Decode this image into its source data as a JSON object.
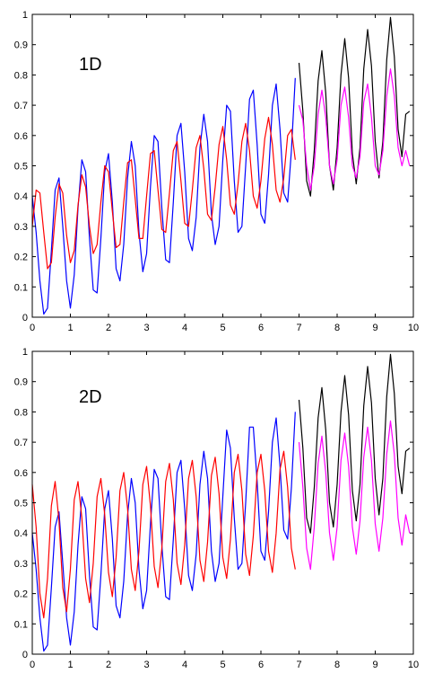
{
  "chart_data": [
    {
      "type": "line",
      "title": "",
      "annotation": "1D",
      "xlabel": "",
      "ylabel": "",
      "xlim": [
        0,
        10
      ],
      "ylim": [
        0,
        1
      ],
      "xticks": [
        "0",
        "1",
        "2",
        "3",
        "4",
        "5",
        "6",
        "7",
        "8",
        "9",
        "10"
      ],
      "yticks": [
        "0",
        "0.1",
        "0.2",
        "0.3",
        "0.4",
        "0.5",
        "0.6",
        "0.7",
        "0.8",
        "0.9",
        "1"
      ],
      "grid": false,
      "series": [
        {
          "color": "#0000ff",
          "x": [
            0,
            0.1,
            0.2,
            0.3,
            0.4,
            0.5,
            0.6,
            0.7,
            0.8,
            0.9,
            1,
            1.1,
            1.2,
            1.3,
            1.4,
            1.5,
            1.6,
            1.7,
            1.8,
            1.9,
            2,
            2.1,
            2.2,
            2.3,
            2.4,
            2.5,
            2.6,
            2.7,
            2.8,
            2.9,
            3,
            3.1,
            3.2,
            3.3,
            3.4,
            3.5,
            3.6,
            3.7,
            3.8,
            3.9,
            4,
            4.1,
            4.2,
            4.3,
            4.4,
            4.5,
            4.6,
            4.7,
            4.8,
            4.9,
            5,
            5.1,
            5.2,
            5.3,
            5.4,
            5.5,
            5.6,
            5.7,
            5.8,
            5.9,
            6,
            6.1,
            6.2,
            6.3,
            6.4,
            6.5,
            6.6,
            6.7,
            6.8,
            6.9
          ],
          "y": [
            0.4,
            0.28,
            0.12,
            0.01,
            0.03,
            0.22,
            0.42,
            0.46,
            0.3,
            0.12,
            0.03,
            0.14,
            0.36,
            0.52,
            0.48,
            0.26,
            0.09,
            0.08,
            0.26,
            0.48,
            0.54,
            0.38,
            0.16,
            0.12,
            0.24,
            0.46,
            0.58,
            0.5,
            0.28,
            0.15,
            0.21,
            0.43,
            0.6,
            0.58,
            0.36,
            0.19,
            0.18,
            0.38,
            0.6,
            0.64,
            0.48,
            0.26,
            0.22,
            0.33,
            0.56,
            0.67,
            0.58,
            0.34,
            0.24,
            0.3,
            0.52,
            0.7,
            0.68,
            0.45,
            0.28,
            0.3,
            0.5,
            0.72,
            0.75,
            0.57,
            0.34,
            0.31,
            0.47,
            0.7,
            0.77,
            0.62,
            0.41,
            0.38,
            0.55,
            0.79
          ]
        },
        {
          "color": "#ff0000",
          "x": [
            0,
            0.1,
            0.2,
            0.3,
            0.4,
            0.5,
            0.6,
            0.7,
            0.8,
            0.9,
            1,
            1.1,
            1.2,
            1.3,
            1.4,
            1.5,
            1.6,
            1.7,
            1.8,
            1.9,
            2,
            2.1,
            2.2,
            2.3,
            2.4,
            2.5,
            2.6,
            2.7,
            2.8,
            2.9,
            3,
            3.1,
            3.2,
            3.3,
            3.4,
            3.5,
            3.6,
            3.7,
            3.8,
            3.9,
            4,
            4.1,
            4.2,
            4.3,
            4.4,
            4.5,
            4.6,
            4.7,
            4.8,
            4.9,
            5,
            5.1,
            5.2,
            5.3,
            5.4,
            5.5,
            5.6,
            5.7,
            5.8,
            5.9,
            6,
            6.1,
            6.2,
            6.3,
            6.4,
            6.5,
            6.6,
            6.7,
            6.8,
            6.9
          ],
          "y": [
            0.3,
            0.42,
            0.41,
            0.28,
            0.16,
            0.18,
            0.33,
            0.44,
            0.41,
            0.27,
            0.18,
            0.22,
            0.37,
            0.47,
            0.43,
            0.3,
            0.21,
            0.24,
            0.38,
            0.5,
            0.48,
            0.35,
            0.23,
            0.24,
            0.38,
            0.51,
            0.52,
            0.39,
            0.26,
            0.26,
            0.4,
            0.54,
            0.55,
            0.42,
            0.29,
            0.28,
            0.41,
            0.55,
            0.58,
            0.45,
            0.31,
            0.3,
            0.42,
            0.56,
            0.6,
            0.49,
            0.34,
            0.32,
            0.43,
            0.57,
            0.63,
            0.52,
            0.37,
            0.34,
            0.44,
            0.58,
            0.64,
            0.55,
            0.4,
            0.36,
            0.45,
            0.59,
            0.66,
            0.57,
            0.42,
            0.38,
            0.46,
            0.6,
            0.62,
            0.52
          ]
        },
        {
          "color": "#000000",
          "x": [
            7,
            7.1,
            7.2,
            7.3,
            7.4,
            7.5,
            7.6,
            7.7,
            7.8,
            7.9,
            8,
            8.1,
            8.2,
            8.3,
            8.4,
            8.5,
            8.6,
            8.7,
            8.8,
            8.9,
            9,
            9.1,
            9.2,
            9.3,
            9.4,
            9.5,
            9.6,
            9.7,
            9.8,
            9.9
          ],
          "y": [
            0.84,
            0.68,
            0.45,
            0.4,
            0.55,
            0.78,
            0.88,
            0.74,
            0.5,
            0.42,
            0.56,
            0.8,
            0.92,
            0.79,
            0.54,
            0.44,
            0.56,
            0.82,
            0.95,
            0.83,
            0.58,
            0.46,
            0.58,
            0.85,
            0.99,
            0.86,
            0.62,
            0.53,
            0.67,
            0.68
          ]
        },
        {
          "color": "#ff00ff",
          "x": [
            7,
            7.1,
            7.2,
            7.3,
            7.4,
            7.5,
            7.6,
            7.7,
            7.8,
            7.9,
            8,
            8.1,
            8.2,
            8.3,
            8.4,
            8.5,
            8.6,
            8.7,
            8.8,
            8.9,
            9,
            9.1,
            9.2,
            9.3,
            9.4,
            9.5,
            9.6,
            9.7,
            9.8,
            9.9
          ],
          "y": [
            0.7,
            0.65,
            0.5,
            0.42,
            0.5,
            0.67,
            0.75,
            0.66,
            0.5,
            0.44,
            0.52,
            0.7,
            0.76,
            0.66,
            0.5,
            0.46,
            0.53,
            0.71,
            0.77,
            0.66,
            0.5,
            0.47,
            0.55,
            0.73,
            0.82,
            0.73,
            0.56,
            0.5,
            0.55,
            0.5
          ]
        }
      ]
    },
    {
      "type": "line",
      "title": "",
      "annotation": "2D",
      "xlabel": "",
      "ylabel": "",
      "xlim": [
        0,
        10
      ],
      "ylim": [
        0,
        1
      ],
      "xticks": [
        "0",
        "1",
        "2",
        "3",
        "4",
        "5",
        "6",
        "7",
        "8",
        "9",
        "10"
      ],
      "yticks": [
        "0",
        "0.1",
        "0.2",
        "0.3",
        "0.4",
        "0.5",
        "0.6",
        "0.7",
        "0.8",
        "0.9",
        "1"
      ],
      "grid": false,
      "series": [
        {
          "color": "#0000ff",
          "x": [
            0,
            0.1,
            0.2,
            0.3,
            0.4,
            0.5,
            0.6,
            0.7,
            0.8,
            0.9,
            1,
            1.1,
            1.2,
            1.3,
            1.4,
            1.5,
            1.6,
            1.7,
            1.8,
            1.9,
            2,
            2.1,
            2.2,
            2.3,
            2.4,
            2.5,
            2.6,
            2.7,
            2.8,
            2.9,
            3,
            3.1,
            3.2,
            3.3,
            3.4,
            3.5,
            3.6,
            3.7,
            3.8,
            3.9,
            4,
            4.1,
            4.2,
            4.3,
            4.4,
            4.5,
            4.6,
            4.7,
            4.8,
            4.9,
            5,
            5.1,
            5.2,
            5.3,
            5.4,
            5.5,
            5.6,
            5.7,
            5.8,
            5.9,
            6,
            6.1,
            6.2,
            6.3,
            6.4,
            6.5,
            6.6,
            6.7,
            6.8,
            6.9
          ],
          "y": [
            0.4,
            0.28,
            0.12,
            0.01,
            0.03,
            0.22,
            0.42,
            0.47,
            0.3,
            0.12,
            0.03,
            0.14,
            0.36,
            0.52,
            0.48,
            0.26,
            0.09,
            0.08,
            0.26,
            0.48,
            0.54,
            0.38,
            0.16,
            0.12,
            0.24,
            0.46,
            0.58,
            0.5,
            0.28,
            0.15,
            0.21,
            0.43,
            0.61,
            0.58,
            0.36,
            0.19,
            0.18,
            0.38,
            0.6,
            0.64,
            0.48,
            0.26,
            0.21,
            0.33,
            0.56,
            0.67,
            0.58,
            0.34,
            0.24,
            0.3,
            0.52,
            0.74,
            0.68,
            0.45,
            0.28,
            0.3,
            0.5,
            0.75,
            0.75,
            0.57,
            0.34,
            0.31,
            0.47,
            0.7,
            0.78,
            0.62,
            0.41,
            0.38,
            0.55,
            0.8
          ]
        },
        {
          "color": "#ff0000",
          "x": [
            0,
            0.1,
            0.2,
            0.3,
            0.4,
            0.5,
            0.6,
            0.7,
            0.8,
            0.9,
            1,
            1.1,
            1.2,
            1.3,
            1.4,
            1.5,
            1.6,
            1.7,
            1.8,
            1.9,
            2,
            2.1,
            2.2,
            2.3,
            2.4,
            2.5,
            2.6,
            2.7,
            2.8,
            2.9,
            3,
            3.1,
            3.2,
            3.3,
            3.4,
            3.5,
            3.6,
            3.7,
            3.8,
            3.9,
            4,
            4.1,
            4.2,
            4.3,
            4.4,
            4.5,
            4.6,
            4.7,
            4.8,
            4.9,
            5,
            5.1,
            5.2,
            5.3,
            5.4,
            5.5,
            5.6,
            5.7,
            5.8,
            5.9,
            6,
            6.1,
            6.2,
            6.3,
            6.4,
            6.5,
            6.6,
            6.7,
            6.8,
            6.9
          ],
          "y": [
            0.56,
            0.42,
            0.2,
            0.12,
            0.25,
            0.49,
            0.57,
            0.44,
            0.22,
            0.14,
            0.28,
            0.51,
            0.57,
            0.45,
            0.25,
            0.17,
            0.3,
            0.52,
            0.58,
            0.46,
            0.27,
            0.19,
            0.32,
            0.54,
            0.6,
            0.48,
            0.28,
            0.21,
            0.34,
            0.56,
            0.62,
            0.49,
            0.29,
            0.22,
            0.35,
            0.57,
            0.63,
            0.51,
            0.3,
            0.23,
            0.36,
            0.58,
            0.64,
            0.52,
            0.31,
            0.24,
            0.37,
            0.59,
            0.65,
            0.53,
            0.32,
            0.25,
            0.38,
            0.6,
            0.66,
            0.54,
            0.33,
            0.26,
            0.39,
            0.6,
            0.66,
            0.54,
            0.34,
            0.27,
            0.4,
            0.61,
            0.67,
            0.55,
            0.35,
            0.28
          ]
        },
        {
          "color": "#000000",
          "x": [
            7,
            7.1,
            7.2,
            7.3,
            7.4,
            7.5,
            7.6,
            7.7,
            7.8,
            7.9,
            8,
            8.1,
            8.2,
            8.3,
            8.4,
            8.5,
            8.6,
            8.7,
            8.8,
            8.9,
            9,
            9.1,
            9.2,
            9.3,
            9.4,
            9.5,
            9.6,
            9.7,
            9.8,
            9.9
          ],
          "y": [
            0.84,
            0.68,
            0.45,
            0.4,
            0.55,
            0.78,
            0.88,
            0.74,
            0.5,
            0.42,
            0.56,
            0.8,
            0.92,
            0.79,
            0.54,
            0.44,
            0.56,
            0.82,
            0.95,
            0.83,
            0.58,
            0.46,
            0.58,
            0.85,
            0.99,
            0.86,
            0.62,
            0.53,
            0.67,
            0.68
          ]
        },
        {
          "color": "#ff00ff",
          "x": [
            7,
            7.1,
            7.2,
            7.3,
            7.4,
            7.5,
            7.6,
            7.7,
            7.8,
            7.9,
            8,
            8.1,
            8.2,
            8.3,
            8.4,
            8.5,
            8.6,
            8.7,
            8.8,
            8.9,
            9,
            9.1,
            9.2,
            9.3,
            9.4,
            9.5,
            9.6,
            9.7,
            9.8,
            9.9
          ],
          "y": [
            0.7,
            0.55,
            0.35,
            0.28,
            0.42,
            0.63,
            0.72,
            0.6,
            0.4,
            0.31,
            0.42,
            0.64,
            0.73,
            0.62,
            0.42,
            0.33,
            0.44,
            0.65,
            0.75,
            0.64,
            0.43,
            0.34,
            0.45,
            0.66,
            0.77,
            0.66,
            0.45,
            0.36,
            0.46,
            0.4
          ]
        }
      ]
    }
  ]
}
